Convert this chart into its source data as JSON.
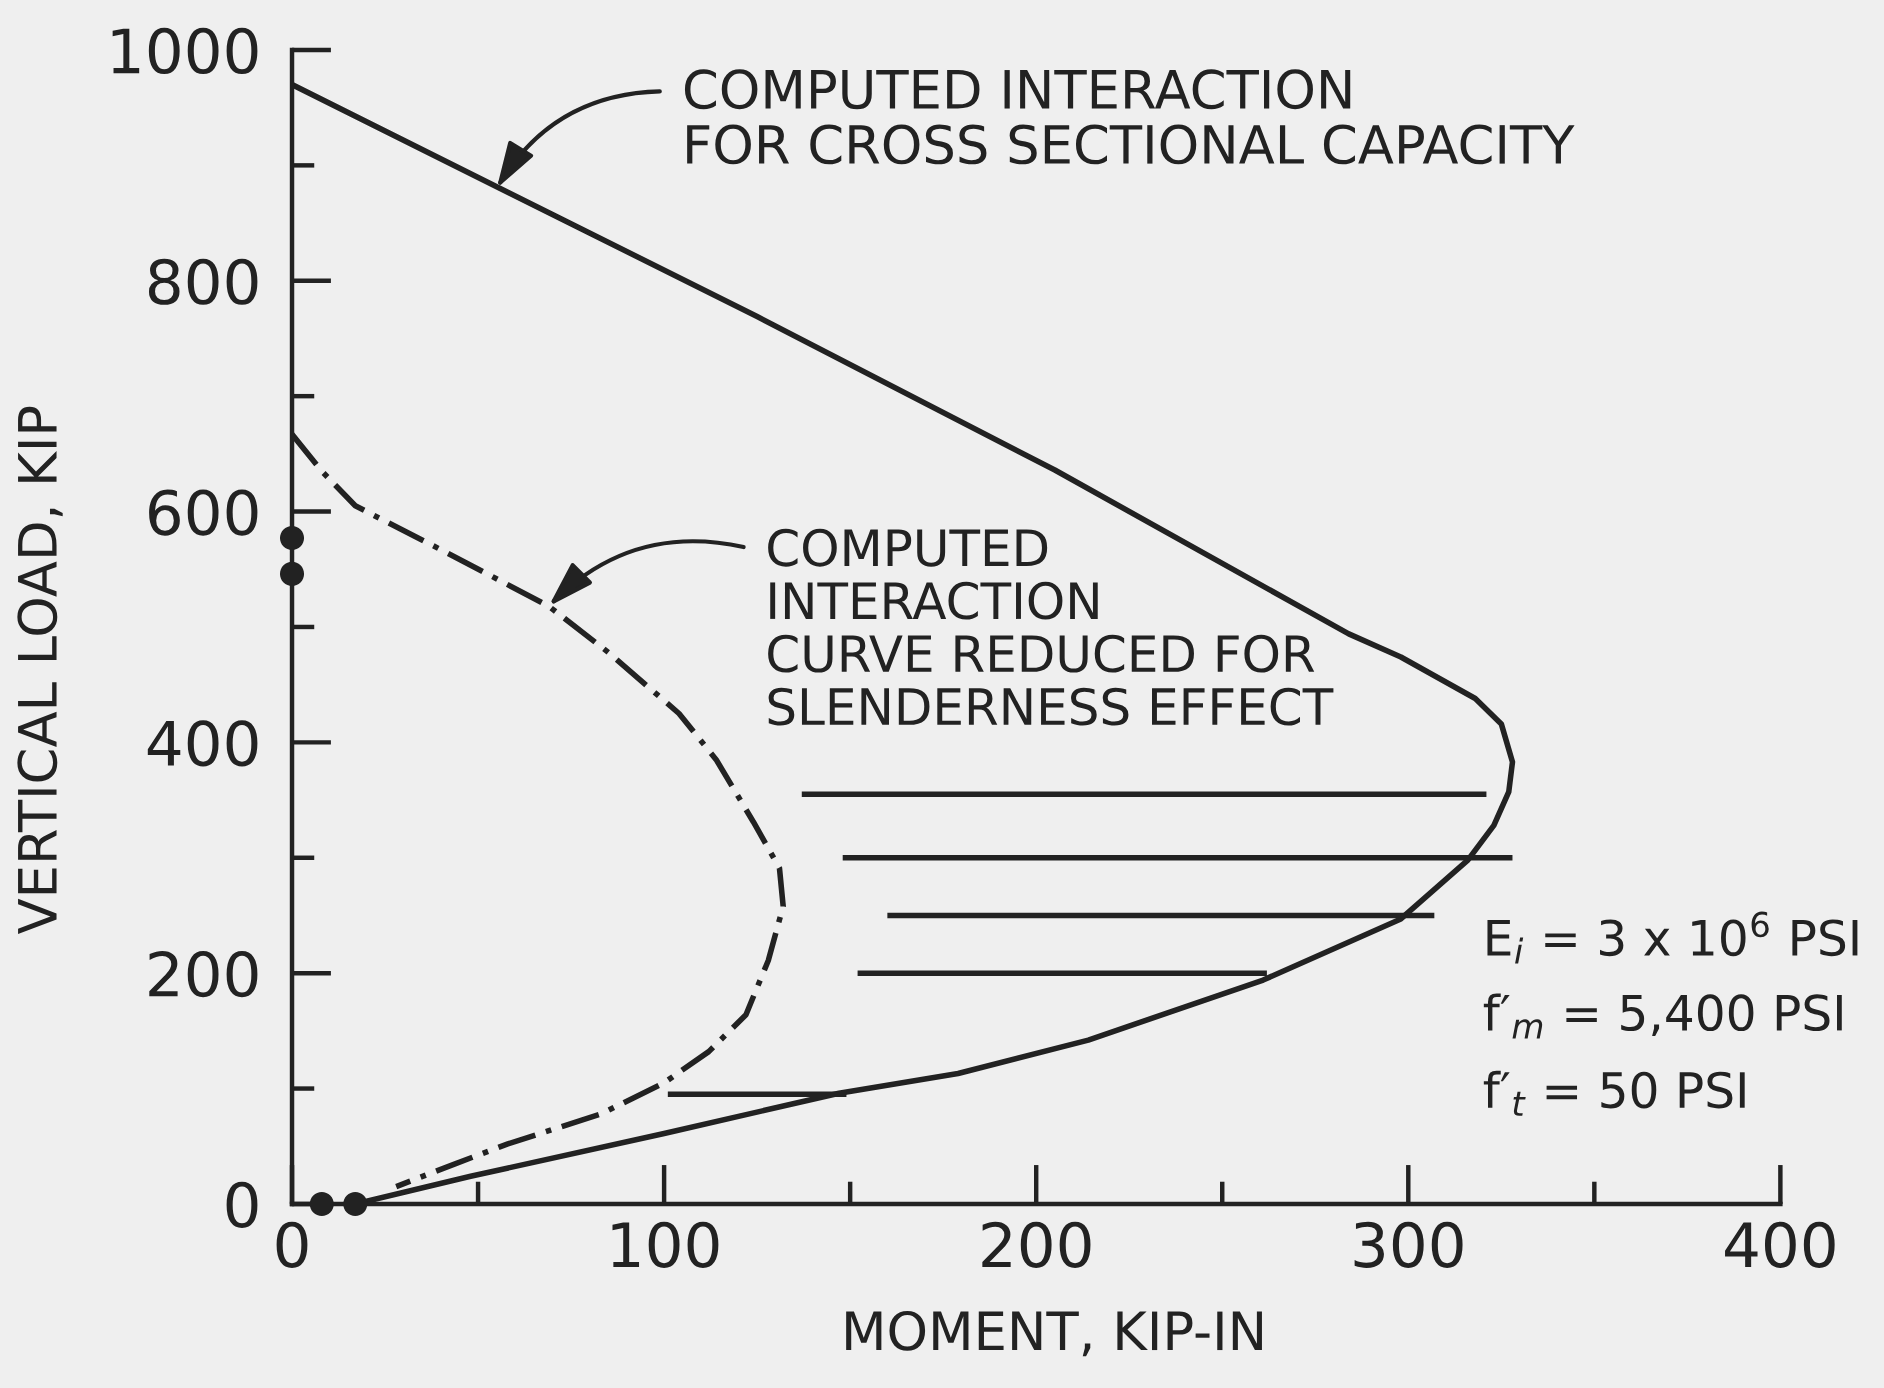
{
  "chart_data": {
    "type": "line",
    "xlabel": "MOMENT, KIP-IN",
    "ylabel": "VERTICAL LOAD, KIP",
    "xlim": [
      0,
      400
    ],
    "ylim": [
      0,
      1000
    ],
    "xticks": [
      0,
      {
        "value": 50,
        "label": null
      },
      100,
      {
        "value": 150,
        "label": null
      },
      200,
      {
        "value": 250,
        "label": null
      },
      300,
      {
        "value": 350,
        "label": null
      },
      400
    ],
    "yticks": [
      0,
      {
        "value": 100,
        "label": null
      },
      200,
      {
        "value": 300,
        "label": null
      },
      400,
      {
        "value": 500,
        "label": null
      },
      600,
      {
        "value": 700,
        "label": null
      },
      800,
      {
        "value": 900,
        "label": null
      },
      1000
    ],
    "series": [
      {
        "color": "#222222",
        "line_style": "solid",
        "x": [
          0,
          125,
          205,
          284,
          298,
          318,
          325,
          328,
          327,
          323,
          316,
          298,
          261,
          214,
          179,
          147,
          100,
          48,
          17
        ],
        "values": [
          970,
          769,
          636,
          494,
          474,
          438,
          416,
          383,
          357,
          328,
          298,
          247,
          194,
          142,
          113,
          96,
          61,
          24,
          0
        ]
      },
      {
        "color": "#222222",
        "line_style": "dashdot",
        "x": [
          0,
          8,
          17,
          43,
          69,
          85,
          104,
          114,
          124,
          131,
          132,
          128,
          122,
          112,
          100,
          83,
          58,
          44,
          28
        ],
        "values": [
          667,
          635,
          605,
          562,
          518,
          478,
          425,
          385,
          331,
          291,
          258,
          211,
          164,
          132,
          105,
          78,
          52,
          35,
          15
        ]
      },
      {
        "color": "#222222",
        "line_style": "solid",
        "x": [
          101,
          149
        ],
        "values": [
          95,
          95
        ]
      },
      {
        "color": "#222222",
        "line_style": "solid",
        "x": [
          152,
          262
        ],
        "values": [
          200,
          200
        ]
      },
      {
        "color": "#222222",
        "line_style": "solid",
        "x": [
          160,
          307
        ],
        "values": [
          250,
          250
        ]
      },
      {
        "color": "#222222",
        "line_style": "solid",
        "x": [
          148,
          328
        ],
        "values": [
          300,
          300
        ]
      },
      {
        "color": "#222222",
        "line_style": "solid",
        "x": [
          137,
          321
        ],
        "values": [
          355,
          355
        ]
      },
      {
        "type": "scatter",
        "color": "#222222",
        "marker": "circle",
        "x": [
          0,
          0,
          8,
          17
        ],
        "values": [
          577,
          546,
          0,
          0
        ]
      }
    ],
    "annotations": [
      {
        "text": "COMPUTED INTERACTION\nFOR CROSS SECTIONAL CAPACITY",
        "x": 55,
        "y": 880
      },
      {
        "text": "COMPUTED\nINTERACTION\nCURVE REDUCED FOR\nSLENDERNESS EFFECT",
        "x": 69,
        "y": 518
      },
      "E$_{i}$ = 3 x 10$^{6}$ PSI",
      "f′$_{m}$ = 5,400 PSI",
      "f′$_{t}$ = 50 PSI"
    ]
  }
}
